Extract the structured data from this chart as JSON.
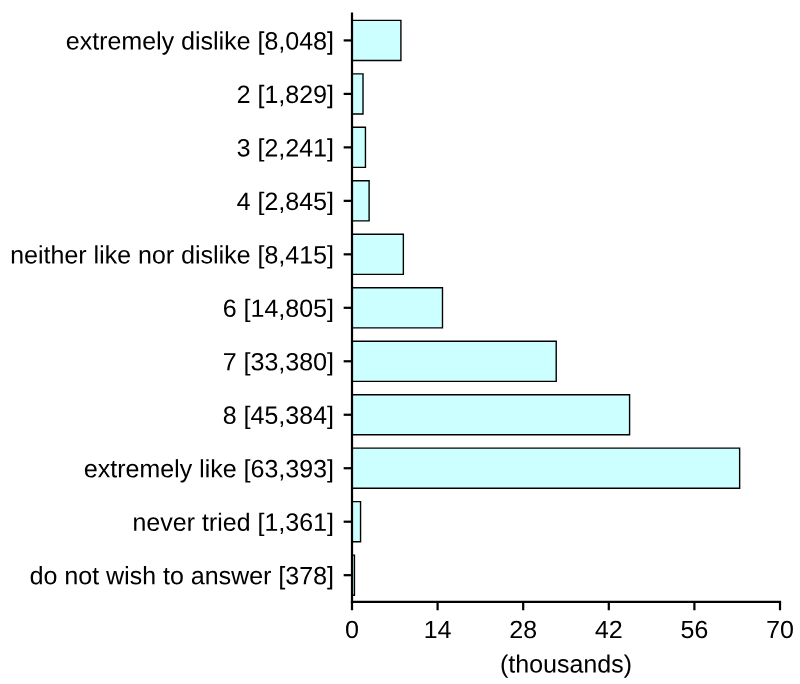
{
  "chart_data": {
    "type": "bar",
    "orientation": "horizontal",
    "xlabel": "(thousands)",
    "categories": [
      "extremely dislike [8,048]",
      "2 [1,829]",
      "3 [2,241]",
      "4 [2,845]",
      "neither like nor dislike [8,415]",
      "6 [14,805]",
      "7 [33,380]",
      "8 [45,384]",
      "extremely like [63,393]",
      "never tried [1,361]",
      "do not wish to answer [378]"
    ],
    "values": [
      8.0,
      1.8,
      2.2,
      2.8,
      8.4,
      14.8,
      33.4,
      45.4,
      63.4,
      1.4,
      0.4
    ],
    "color": "#ccffff",
    "xlim": [
      0,
      70
    ],
    "xticks": [
      0,
      14,
      28,
      42,
      56,
      70
    ],
    "grid": false
  }
}
